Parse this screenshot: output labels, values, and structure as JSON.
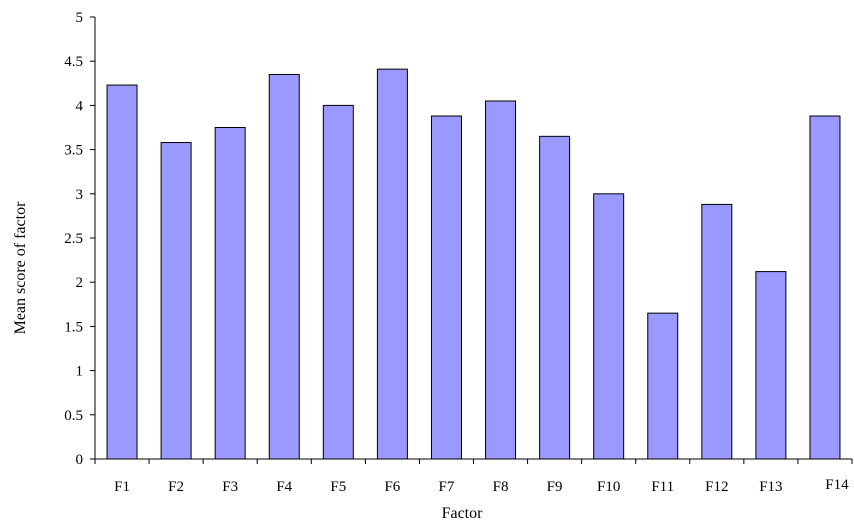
{
  "chart_data": {
    "type": "bar",
    "categories": [
      "F1",
      "F2",
      "F3",
      "F4",
      "F5",
      "F6",
      "F7",
      "F8",
      "F9",
      "F10",
      "F11",
      "F12",
      "F13",
      "F14"
    ],
    "values": [
      4.23,
      3.58,
      3.75,
      4.35,
      4.0,
      4.41,
      3.88,
      4.05,
      3.65,
      3.0,
      1.65,
      2.88,
      2.12,
      3.88
    ],
    "title": "",
    "xlabel": "Factor",
    "ylabel": "Mean score of factor",
    "ylim": [
      0,
      5
    ],
    "yticks": [
      "0",
      "0.5",
      "1",
      "1.5",
      "2",
      "2.5",
      "3",
      "3.5",
      "4",
      "4.5",
      "5"
    ],
    "grid": false,
    "legend": "none",
    "bar_color": "#9999ff",
    "bar_edge_color": "#000000"
  }
}
